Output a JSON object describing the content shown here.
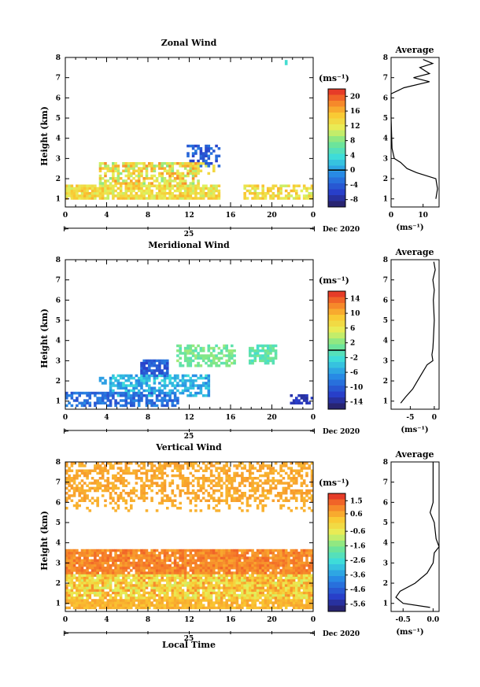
{
  "chart_data": [
    {
      "type": "heatmap",
      "title": "Zonal Wind",
      "ylabel": "Height (km)",
      "x_ticks": [
        "0",
        "4",
        "8",
        "12",
        "16",
        "20",
        "0"
      ],
      "y_ticks": [
        "1",
        "2",
        "3",
        "4",
        "5",
        "6",
        "7",
        "8"
      ],
      "ylim": [
        0.6,
        8.0
      ],
      "xlim": [
        0,
        24
      ],
      "day_label": "25",
      "month_label": "Dec 2020",
      "colorbar": {
        "unit": "(ms⁻¹)",
        "ticks": [
          "20",
          "16",
          "12",
          "8",
          "4",
          "0",
          "-4",
          "-8"
        ],
        "range": [
          -10,
          22
        ],
        "zero_line": 0
      },
      "average": {
        "title": "Average",
        "xlabel": "(ms⁻¹)",
        "x_ticks": [
          "0",
          "10"
        ],
        "xlim": [
          0,
          15
        ],
        "profile": [
          [
            1.0,
            14
          ],
          [
            1.5,
            14.5
          ],
          [
            2.0,
            14
          ],
          [
            2.3,
            8
          ],
          [
            2.5,
            5
          ],
          [
            2.8,
            3
          ],
          [
            3.0,
            1
          ],
          [
            3.5,
            0.3
          ],
          [
            5.0,
            0
          ],
          [
            6.2,
            0
          ],
          [
            6.5,
            4
          ],
          [
            6.8,
            12
          ],
          [
            7.0,
            7
          ],
          [
            7.2,
            12
          ],
          [
            7.5,
            9
          ],
          [
            7.7,
            13
          ],
          [
            7.9,
            10
          ]
        ]
      }
    },
    {
      "type": "heatmap",
      "title": "Meridional Wind",
      "ylabel": "Height (km)",
      "x_ticks": [
        "0",
        "4",
        "8",
        "12",
        "16",
        "20",
        "0"
      ],
      "y_ticks": [
        "1",
        "2",
        "3",
        "4",
        "5",
        "6",
        "7",
        "8"
      ],
      "ylim": [
        0.6,
        8.0
      ],
      "xlim": [
        0,
        24
      ],
      "day_label": "25",
      "month_label": "Dec 2020",
      "colorbar": {
        "unit": "(ms⁻¹)",
        "ticks": [
          "14",
          "10",
          "6",
          "2",
          "-2",
          "-6",
          "-10",
          "-14"
        ],
        "range": [
          -16,
          16
        ],
        "zero_line": 0
      },
      "average": {
        "title": "Average",
        "xlabel": "(ms⁻¹)",
        "x_ticks": [
          "-5",
          "0"
        ],
        "xlim": [
          -9,
          1
        ],
        "profile": [
          [
            0.9,
            -7
          ],
          [
            1.2,
            -6
          ],
          [
            1.6,
            -4.5
          ],
          [
            2.0,
            -3.5
          ],
          [
            2.4,
            -2.5
          ],
          [
            2.8,
            -1.5
          ],
          [
            3.0,
            -0.3
          ],
          [
            3.3,
            -0.5
          ],
          [
            3.6,
            -0.3
          ],
          [
            4.0,
            -0.2
          ],
          [
            5.0,
            0
          ],
          [
            6.0,
            -0.2
          ],
          [
            6.5,
            0
          ],
          [
            7.0,
            -0.3
          ],
          [
            7.5,
            0.2
          ],
          [
            7.9,
            -0.1
          ]
        ]
      }
    },
    {
      "type": "heatmap",
      "title": "Vertical Wind",
      "ylabel": "Height (km)",
      "xlabel": "Local Time",
      "x_ticks": [
        "0",
        "4",
        "8",
        "12",
        "16",
        "20",
        "0"
      ],
      "y_ticks": [
        "1",
        "2",
        "3",
        "4",
        "5",
        "6",
        "7",
        "8"
      ],
      "ylim": [
        0.6,
        8.0
      ],
      "xlim": [
        0,
        24
      ],
      "day_label": "25",
      "month_label": "Dec 2020",
      "colorbar": {
        "unit": "(ms⁻¹)",
        "ticks": [
          "1.5",
          "0.6",
          "-0.6",
          "-1.6",
          "-2.6",
          "-3.6",
          "-4.6",
          "-5.6"
        ],
        "range": [
          -6.1,
          2.0
        ]
      },
      "average": {
        "title": "Average",
        "xlabel": "(ms⁻¹)",
        "x_ticks": [
          "-0.5",
          "0.0"
        ],
        "xlim": [
          -0.7,
          0.1
        ],
        "profile": [
          [
            0.8,
            -0.05
          ],
          [
            1.0,
            -0.5
          ],
          [
            1.3,
            -0.62
          ],
          [
            1.6,
            -0.55
          ],
          [
            2.0,
            -0.3
          ],
          [
            2.5,
            -0.1
          ],
          [
            3.0,
            0.0
          ],
          [
            3.5,
            0.02
          ],
          [
            3.8,
            0.1
          ],
          [
            4.2,
            0.05
          ],
          [
            5.0,
            0.02
          ],
          [
            5.5,
            -0.05
          ],
          [
            6.0,
            0.0
          ],
          [
            7.0,
            0.0
          ],
          [
            8.0,
            0.0
          ]
        ]
      }
    }
  ]
}
